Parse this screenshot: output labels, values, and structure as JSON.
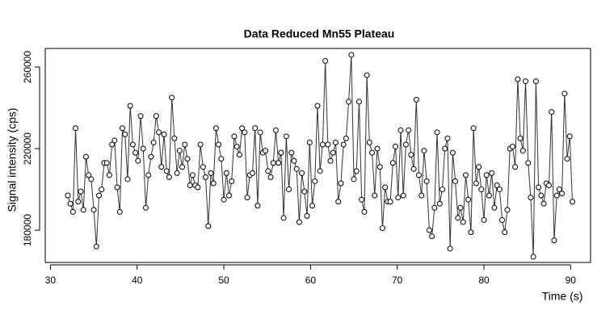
{
  "chart_data": {
    "type": "line",
    "title": "Data Reduced Mn55 Plateau",
    "xlabel": "Time (s)",
    "ylabel": "Signal intensity (cps)",
    "xlim": [
      29.4,
      92.3
    ],
    "xticks": [
      30,
      40,
      50,
      60,
      70,
      80,
      90
    ],
    "ylim": [
      164200,
      269100
    ],
    "yticks": [
      180000,
      220000,
      260000
    ],
    "markers": true,
    "color": "#333333",
    "x": [
      32.0,
      32.3,
      32.6,
      32.9,
      33.2,
      33.5,
      33.8,
      34.1,
      34.4,
      34.7,
      35.0,
      35.3,
      35.6,
      35.9,
      36.2,
      36.5,
      36.8,
      37.1,
      37.4,
      37.7,
      38.0,
      38.3,
      38.6,
      38.9,
      39.2,
      39.5,
      39.8,
      40.1,
      40.4,
      40.7,
      41.0,
      41.3,
      41.6,
      41.9,
      42.2,
      42.5,
      42.8,
      43.1,
      43.4,
      43.7,
      44.0,
      44.3,
      44.6,
      44.9,
      45.2,
      45.5,
      45.8,
      46.1,
      46.4,
      46.7,
      47.0,
      47.3,
      47.6,
      47.9,
      48.2,
      48.5,
      48.8,
      49.1,
      49.4,
      49.7,
      50.0,
      50.3,
      50.6,
      50.9,
      51.2,
      51.5,
      51.8,
      52.1,
      52.4,
      52.7,
      53.0,
      53.3,
      53.6,
      53.9,
      54.2,
      54.5,
      54.8,
      55.1,
      55.4,
      55.7,
      56.0,
      56.3,
      56.6,
      56.9,
      57.2,
      57.5,
      57.8,
      58.1,
      58.4,
      58.7,
      59.0,
      59.3,
      59.6,
      59.9,
      60.2,
      60.5,
      60.8,
      61.1,
      61.4,
      61.7,
      62.0,
      62.3,
      62.6,
      62.9,
      63.2,
      63.5,
      63.8,
      64.1,
      64.4,
      64.7,
      65.0,
      65.3,
      65.6,
      65.9,
      66.2,
      66.5,
      66.8,
      67.1,
      67.4,
      67.7,
      68.0,
      68.3,
      68.6,
      68.9,
      69.2,
      69.5,
      69.8,
      70.1,
      70.4,
      70.7,
      71.0,
      71.3,
      71.6,
      71.9,
      72.2,
      72.5,
      72.8,
      73.1,
      73.4,
      73.7,
      74.0,
      74.3,
      74.6,
      74.9,
      75.2,
      75.5,
      75.8,
      76.1,
      76.4,
      76.7,
      77.0,
      77.3,
      77.6,
      77.9,
      78.2,
      78.5,
      78.8,
      79.1,
      79.4,
      79.7,
      80.0,
      80.3,
      80.6,
      80.9,
      81.2,
      81.5,
      81.8,
      82.1,
      82.4,
      82.7,
      83.0,
      83.3,
      83.6,
      83.9,
      84.2,
      84.5,
      84.8,
      85.1,
      85.4,
      85.7,
      86.0,
      86.3,
      86.6,
      86.9,
      87.2,
      87.5,
      87.8,
      88.1,
      88.4,
      88.7,
      89.0,
      89.3,
      89.6,
      89.9,
      90.2
    ],
    "values": [
      197000,
      193000,
      189000,
      230000,
      194000,
      199000,
      190000,
      216000,
      207000,
      205000,
      190000,
      172000,
      197000,
      200000,
      213000,
      213000,
      207000,
      222000,
      224000,
      201000,
      189000,
      230000,
      227000,
      205000,
      241000,
      222000,
      218000,
      214000,
      236000,
      220000,
      191000,
      207000,
      216000,
      223000,
      236000,
      228000,
      211000,
      227000,
      209000,
      206000,
      245000,
      225000,
      208000,
      219000,
      211000,
      222000,
      215000,
      202000,
      207000,
      202000,
      201000,
      222000,
      211000,
      206000,
      182000,
      208000,
      203000,
      230000,
      222000,
      215000,
      195000,
      208000,
      197000,
      204000,
      226000,
      221000,
      217000,
      230000,
      228000,
      196000,
      207000,
      208000,
      230000,
      192000,
      228000,
      218000,
      219000,
      209000,
      206000,
      213000,
      229000,
      213000,
      218000,
      186000,
      226000,
      200000,
      218000,
      214000,
      210000,
      184000,
      208000,
      199000,
      187000,
      223000,
      192000,
      204000,
      241000,
      209000,
      222000,
      263000,
      222000,
      214000,
      218000,
      223000,
      194000,
      203000,
      222000,
      225000,
      243000,
      266000,
      205000,
      209000,
      243000,
      195000,
      189000,
      256000,
      223000,
      218000,
      197000,
      220000,
      211000,
      181000,
      201000,
      194000,
      194000,
      213000,
      221000,
      196000,
      229000,
      197000,
      222000,
      229000,
      217000,
      210000,
      244000,
      207000,
      197000,
      219000,
      204000,
      180000,
      177000,
      191000,
      228000,
      193000,
      200000,
      220000,
      225000,
      171000,
      218000,
      204000,
      186000,
      191000,
      184000,
      207000,
      195000,
      179000,
      230000,
      203000,
      211000,
      200000,
      185000,
      207000,
      197000,
      208000,
      191000,
      202000,
      200000,
      185000,
      179000,
      190000,
      220000,
      221000,
      211000,
      254000,
      225000,
      219000,
      253000,
      213000,
      196000,
      167000,
      253000,
      201000,
      197000,
      193000,
      203000,
      202000,
      238000,
      175000,
      197000,
      200000,
      198000,
      247000,
      215000,
      226000,
      194000
    ]
  }
}
